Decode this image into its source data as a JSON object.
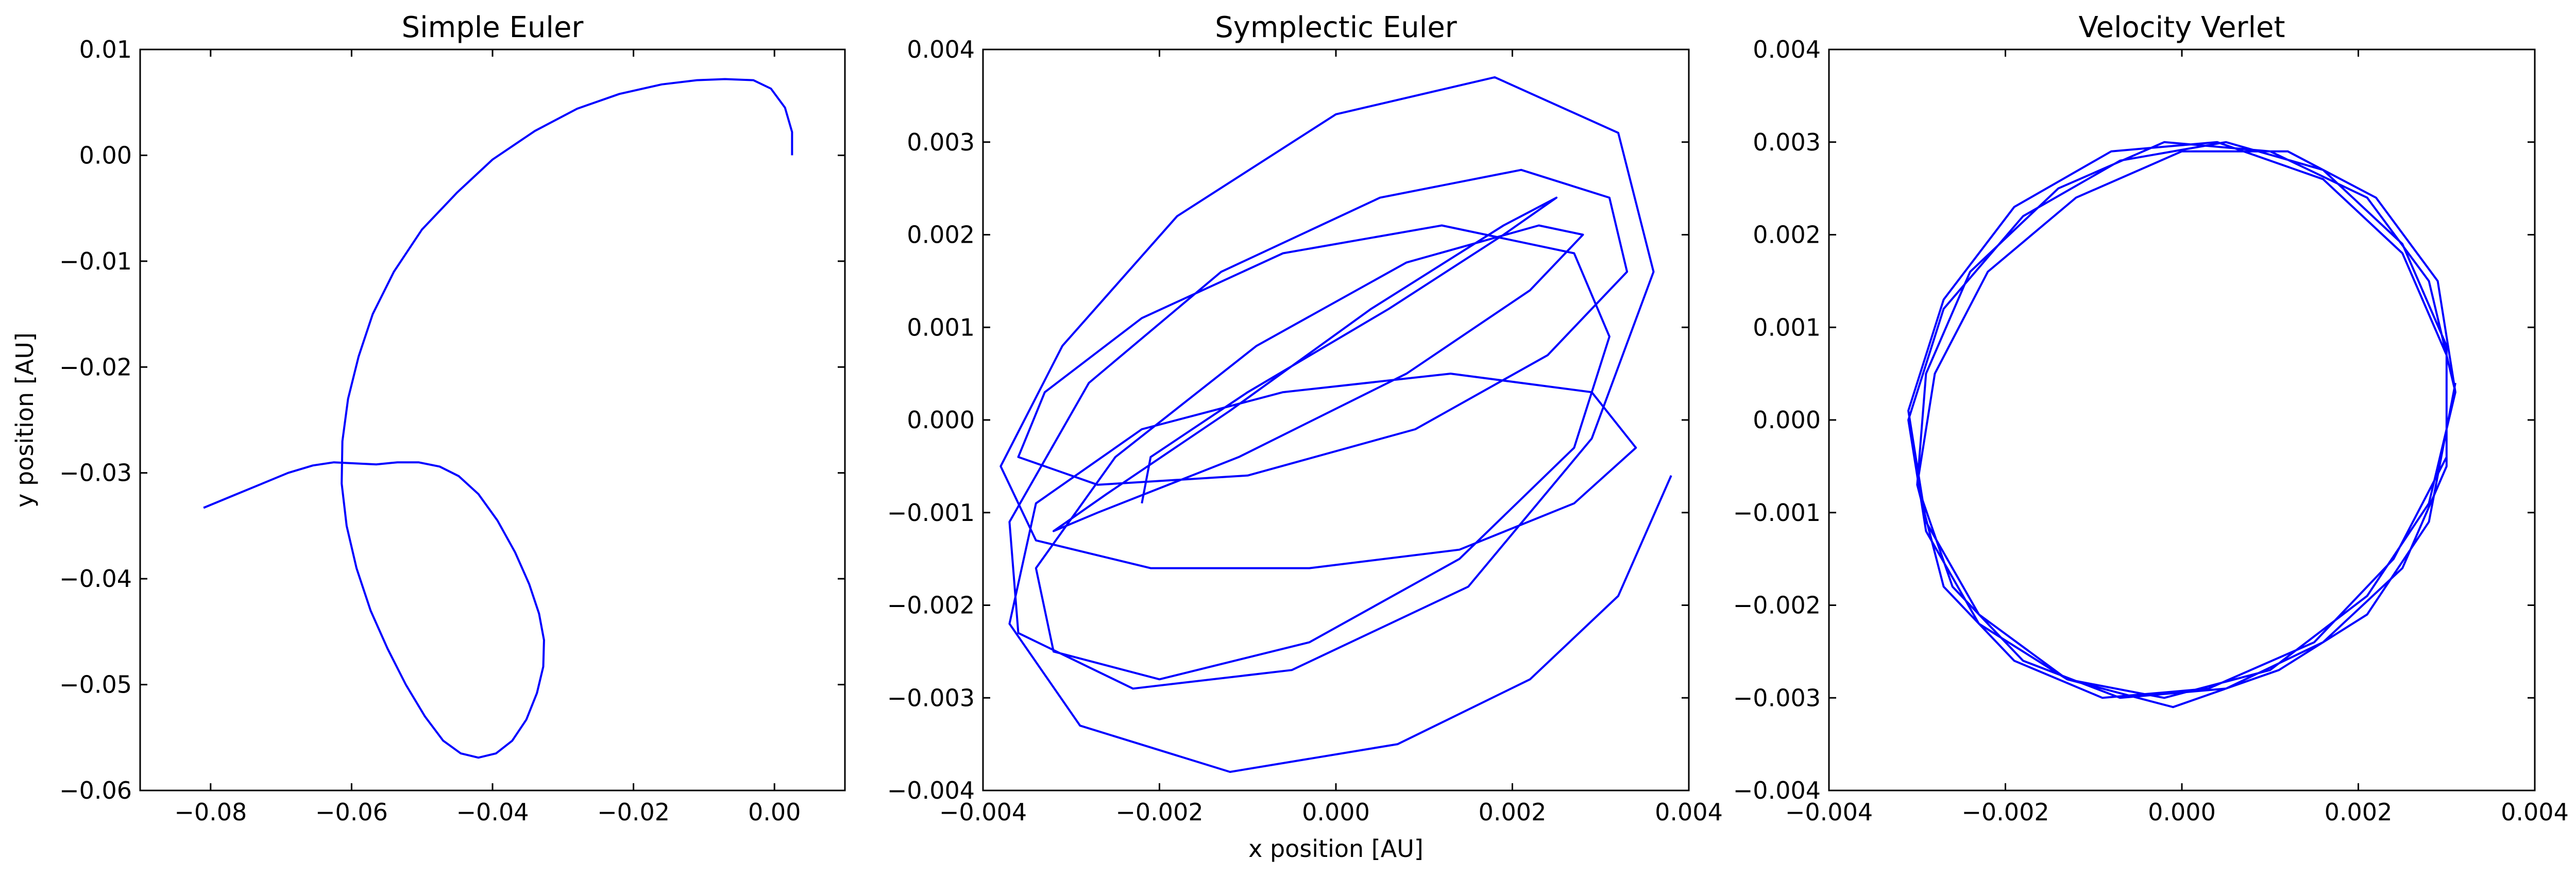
{
  "figure": {
    "xlabel": "x position [AU]",
    "ylabel": "y position [AU]",
    "line_color": "#0000ff"
  },
  "chart_data": [
    {
      "type": "line",
      "title": "Simple Euler",
      "xlim": [
        -0.09,
        0.01
      ],
      "ylim": [
        -0.06,
        0.01
      ],
      "xticks": [
        -0.08,
        -0.06,
        -0.04,
        -0.02,
        0.0
      ],
      "yticks": [
        0.01,
        0.0,
        -0.01,
        -0.02,
        -0.03,
        -0.04,
        -0.05,
        -0.06
      ],
      "xtick_labels": [
        "−0.08",
        "−0.06",
        "−0.04",
        "−0.02",
        "0.00"
      ],
      "ytick_labels": [
        "0.01",
        "0.00",
        "−0.01",
        "−0.02",
        "−0.03",
        "−0.04",
        "−0.05",
        "−0.06"
      ],
      "grid": false,
      "series": [
        {
          "x": [
            0.0025,
            0.0025,
            0.0015,
            -0.0005,
            -0.003,
            -0.007,
            -0.011,
            -0.016,
            -0.022,
            -0.028,
            -0.034,
            -0.04,
            -0.045,
            -0.05,
            -0.054,
            -0.057,
            -0.059,
            -0.0605,
            -0.0613,
            -0.0614,
            -0.0607,
            -0.0593,
            -0.0573,
            -0.0549,
            -0.0523,
            -0.0496,
            -0.047,
            -0.0445,
            -0.042,
            -0.0395,
            -0.0372,
            -0.0352,
            -0.0337,
            -0.0328,
            -0.0327,
            -0.0334,
            -0.0348,
            -0.0368,
            -0.0393,
            -0.042,
            -0.0448,
            -0.0475,
            -0.0505,
            -0.0535,
            -0.0565,
            -0.0595,
            -0.0625,
            -0.0655,
            -0.069,
            -0.073,
            -0.077,
            -0.081
          ],
          "y": [
            0.0,
            0.0022,
            0.0045,
            0.0063,
            0.0071,
            0.0072,
            0.0071,
            0.0067,
            0.0058,
            0.0044,
            0.0023,
            -0.0004,
            -0.0035,
            -0.007,
            -0.011,
            -0.015,
            -0.019,
            -0.023,
            -0.027,
            -0.031,
            -0.035,
            -0.039,
            -0.043,
            -0.0466,
            -0.05,
            -0.053,
            -0.0553,
            -0.0565,
            -0.0569,
            -0.0565,
            -0.0553,
            -0.0533,
            -0.0508,
            -0.0483,
            -0.0458,
            -0.0433,
            -0.0405,
            -0.0375,
            -0.0345,
            -0.032,
            -0.0303,
            -0.0294,
            -0.029,
            -0.029,
            -0.0292,
            -0.0291,
            -0.029,
            -0.0293,
            -0.03,
            -0.0311,
            -0.0322,
            -0.0333
          ]
        }
      ]
    },
    {
      "type": "line",
      "title": "Symplectic Euler",
      "xlim": [
        -0.004,
        0.004
      ],
      "ylim": [
        -0.004,
        0.004
      ],
      "xticks": [
        -0.004,
        -0.002,
        0.0,
        0.002,
        0.004
      ],
      "yticks": [
        0.004,
        0.003,
        0.002,
        0.001,
        0.0,
        -0.001,
        -0.002,
        -0.003,
        -0.004
      ],
      "xtick_labels": [
        "−0.004",
        "−0.002",
        "0.000",
        "0.002",
        "0.004"
      ],
      "ytick_labels": [
        "0.004",
        "0.003",
        "0.002",
        "0.001",
        "0.000",
        "−0.001",
        "−0.002",
        "−0.003",
        "−0.004"
      ],
      "grid": false,
      "series": [
        {
          "x": [
            0.0038,
            0.0032,
            0.0022,
            0.0007,
            -0.0012,
            -0.0029,
            -0.0037,
            -0.0034,
            -0.0022,
            -0.0006,
            0.0013,
            0.0029,
            0.0034,
            0.0027,
            0.0014,
            -0.0003,
            -0.0021,
            -0.0034,
            -0.0038,
            -0.0031,
            -0.0018,
            0.0,
            0.0018,
            0.0032,
            0.0036,
            0.0029,
            0.0015,
            -0.0005,
            -0.0023,
            -0.0036,
            -0.0037,
            -0.0028,
            -0.0013,
            0.0005,
            0.0021,
            0.0031,
            0.0033,
            0.0024,
            0.0009,
            -0.001,
            -0.0027,
            -0.0036,
            -0.0033,
            -0.0022,
            -0.0006,
            0.0012,
            0.0027,
            0.0031,
            0.0027,
            0.0014,
            -0.0003,
            -0.002,
            -0.0032,
            -0.0034,
            -0.0025,
            -0.0009,
            0.0008,
            0.0023,
            0.0028,
            0.0022,
            0.0008,
            -0.0011,
            -0.0027,
            -0.0032,
            -0.0026,
            -0.0012,
            0.0004,
            0.0019,
            0.0025,
            0.0019,
            0.0006,
            -0.001,
            -0.0021,
            -0.0022
          ],
          "y": [
            -0.0006,
            -0.0019,
            -0.0028,
            -0.0035,
            -0.0038,
            -0.0033,
            -0.0022,
            -0.0009,
            -0.0001,
            0.0003,
            0.0005,
            0.0003,
            -0.0003,
            -0.0009,
            -0.0014,
            -0.0016,
            -0.0016,
            -0.0013,
            -0.0005,
            0.0008,
            0.0022,
            0.0033,
            0.0037,
            0.0031,
            0.0016,
            -0.0002,
            -0.0018,
            -0.0027,
            -0.0029,
            -0.0023,
            -0.0011,
            0.0004,
            0.0016,
            0.0024,
            0.0027,
            0.0024,
            0.0016,
            0.0007,
            -0.0001,
            -0.0006,
            -0.0007,
            -0.0004,
            0.0003,
            0.0011,
            0.0018,
            0.0021,
            0.0018,
            0.0009,
            -0.0003,
            -0.0015,
            -0.0024,
            -0.0028,
            -0.0025,
            -0.0016,
            -0.0004,
            0.0008,
            0.0017,
            0.0021,
            0.002,
            0.0014,
            0.0005,
            -0.0004,
            -0.001,
            -0.0012,
            -0.0008,
            0.0001,
            0.0012,
            0.0021,
            0.0024,
            0.002,
            0.0012,
            0.0003,
            -0.0004,
            -0.0009
          ]
        }
      ]
    },
    {
      "type": "line",
      "title": "Velocity Verlet",
      "xlim": [
        -0.004,
        0.004
      ],
      "ylim": [
        -0.004,
        0.004
      ],
      "xticks": [
        -0.004,
        -0.002,
        0.0,
        0.002,
        0.004
      ],
      "yticks": [
        0.004,
        0.003,
        0.002,
        0.001,
        0.0,
        -0.001,
        -0.002,
        -0.003,
        -0.004
      ],
      "xtick_labels": [
        "−0.004",
        "−0.002",
        "0.000",
        "0.002",
        "0.004"
      ],
      "ytick_labels": [
        "0.004",
        "0.003",
        "0.002",
        "0.001",
        "0.000",
        "−0.001",
        "−0.002",
        "−0.003",
        "−0.004"
      ],
      "grid": false,
      "series": [
        {
          "x": [
            0.0031,
            0.0028,
            0.0021,
            0.0011,
            -0.0001,
            -0.0013,
            -0.0023,
            -0.0029,
            -0.0031,
            -0.0027,
            -0.0019,
            -0.0008,
            0.0004,
            0.0016,
            0.0025,
            0.003,
            0.003,
            0.0025,
            0.0016,
            0.0005,
            -0.0007,
            -0.0018,
            -0.0026,
            -0.003,
            -0.0029,
            -0.0024,
            -0.0014,
            -0.0002,
            0.001,
            0.0021,
            0.0028,
            0.0031,
            0.0028,
            0.0021,
            0.001,
            -0.0002,
            -0.0013,
            -0.0023,
            -0.0029,
            -0.0031,
            -0.0027,
            -0.0018,
            -0.0007,
            0.0005,
            0.0016,
            0.0025,
            0.003,
            0.003,
            0.0024,
            0.0015,
            0.0003,
            -0.0009,
            -0.0019,
            -0.0027,
            -0.003,
            -0.0028,
            -0.0022,
            -0.0012,
            0.0,
            0.0012,
            0.0022,
            0.0029,
            0.0031
          ],
          "y": [
            0.0004,
            -0.0011,
            -0.0021,
            -0.0027,
            -0.0031,
            -0.0028,
            -0.0021,
            -0.0011,
            0.0001,
            0.0013,
            0.0023,
            0.0029,
            0.003,
            0.0026,
            0.0018,
            0.0007,
            -0.0005,
            -0.0016,
            -0.0024,
            -0.0029,
            -0.003,
            -0.0026,
            -0.0018,
            -0.0007,
            0.0005,
            0.0016,
            0.0025,
            0.003,
            0.0029,
            0.0024,
            0.0015,
            0.0003,
            -0.0009,
            -0.0019,
            -0.0027,
            -0.003,
            -0.0028,
            -0.0022,
            -0.0012,
            0.0,
            0.0012,
            0.0022,
            0.0028,
            0.003,
            0.0027,
            0.0019,
            0.0008,
            -0.0004,
            -0.0015,
            -0.0024,
            -0.0029,
            -0.003,
            -0.0026,
            -0.0018,
            -0.0007,
            0.0005,
            0.0016,
            0.0024,
            0.0029,
            0.0029,
            0.0024,
            0.0015,
            0.0003
          ]
        }
      ]
    }
  ]
}
